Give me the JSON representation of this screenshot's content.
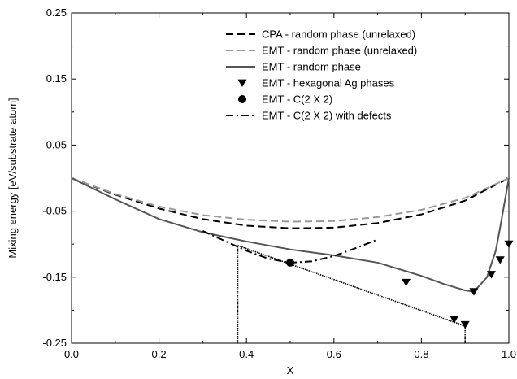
{
  "chart_data": {
    "type": "line",
    "xlabel": "X",
    "ylabel": "Mixing energy [eV/substrate atom]",
    "xlim": [
      0.0,
      1.0
    ],
    "ylim": [
      -0.25,
      0.25
    ],
    "x_ticks": [
      "0.0",
      "0.2",
      "0.4",
      "0.6",
      "0.8",
      "1.0"
    ],
    "y_ticks": [
      "0.25",
      "0.15",
      "0.05",
      "-0.05",
      "-0.15",
      "-0.25"
    ],
    "grid": false,
    "legend_position": "top-right",
    "series": [
      {
        "name": "CPA - random phase (unrelaxed)",
        "style": "dashed",
        "color": "#000000",
        "x": [
          0.0,
          0.1,
          0.2,
          0.3,
          0.4,
          0.5,
          0.6,
          0.7,
          0.8,
          0.9,
          1.0
        ],
        "y": [
          0.0,
          -0.025,
          -0.046,
          -0.062,
          -0.072,
          -0.076,
          -0.075,
          -0.068,
          -0.055,
          -0.034,
          0.0
        ]
      },
      {
        "name": "EMT - random phase (unrelaxed)",
        "style": "dashed",
        "color": "#999999",
        "x": [
          0.0,
          0.1,
          0.2,
          0.3,
          0.4,
          0.5,
          0.6,
          0.7,
          0.8,
          0.9,
          1.0
        ],
        "y": [
          0.0,
          -0.024,
          -0.043,
          -0.056,
          -0.063,
          -0.066,
          -0.065,
          -0.059,
          -0.048,
          -0.03,
          0.0
        ]
      },
      {
        "name": "EMT - random phase",
        "style": "solid",
        "color": "#555555",
        "x": [
          0.0,
          0.1,
          0.2,
          0.3,
          0.4,
          0.5,
          0.6,
          0.7,
          0.8,
          0.85,
          0.9,
          0.92,
          0.95,
          0.97,
          0.98,
          1.0
        ],
        "y": [
          0.0,
          -0.032,
          -0.062,
          -0.082,
          -0.096,
          -0.108,
          -0.117,
          -0.128,
          -0.148,
          -0.16,
          -0.17,
          -0.172,
          -0.15,
          -0.11,
          -0.075,
          0.0
        ]
      },
      {
        "name": "EMT - hexagonal Ag phases",
        "style": "marker-triangle-down",
        "color": "#000000",
        "x": [
          0.765,
          0.875,
          0.9,
          0.92,
          0.96,
          0.98,
          1.0
        ],
        "y": [
          -0.158,
          -0.214,
          -0.222,
          -0.172,
          -0.146,
          -0.124,
          -0.1
        ]
      },
      {
        "name": "EMT - C(2 X 2)",
        "style": "marker-circle",
        "color": "#000000",
        "x": [
          0.5
        ],
        "y": [
          -0.128
        ]
      },
      {
        "name": "EMT - C(2 X 2) with defects",
        "style": "dashdot",
        "color": "#000000",
        "x": [
          0.3,
          0.35,
          0.4,
          0.45,
          0.5,
          0.55,
          0.6,
          0.65,
          0.7
        ],
        "y": [
          -0.08,
          -0.095,
          -0.11,
          -0.122,
          -0.128,
          -0.126,
          -0.118,
          -0.106,
          -0.093
        ]
      }
    ],
    "dotted_lines": [
      {
        "x": [
          0.38,
          0.38
        ],
        "y": [
          -0.25,
          -0.102
        ]
      },
      {
        "x": [
          0.38,
          0.9
        ],
        "y": [
          -0.102,
          -0.224
        ]
      },
      {
        "x": [
          0.9,
          0.9
        ],
        "y": [
          -0.224,
          -0.25
        ]
      }
    ]
  }
}
